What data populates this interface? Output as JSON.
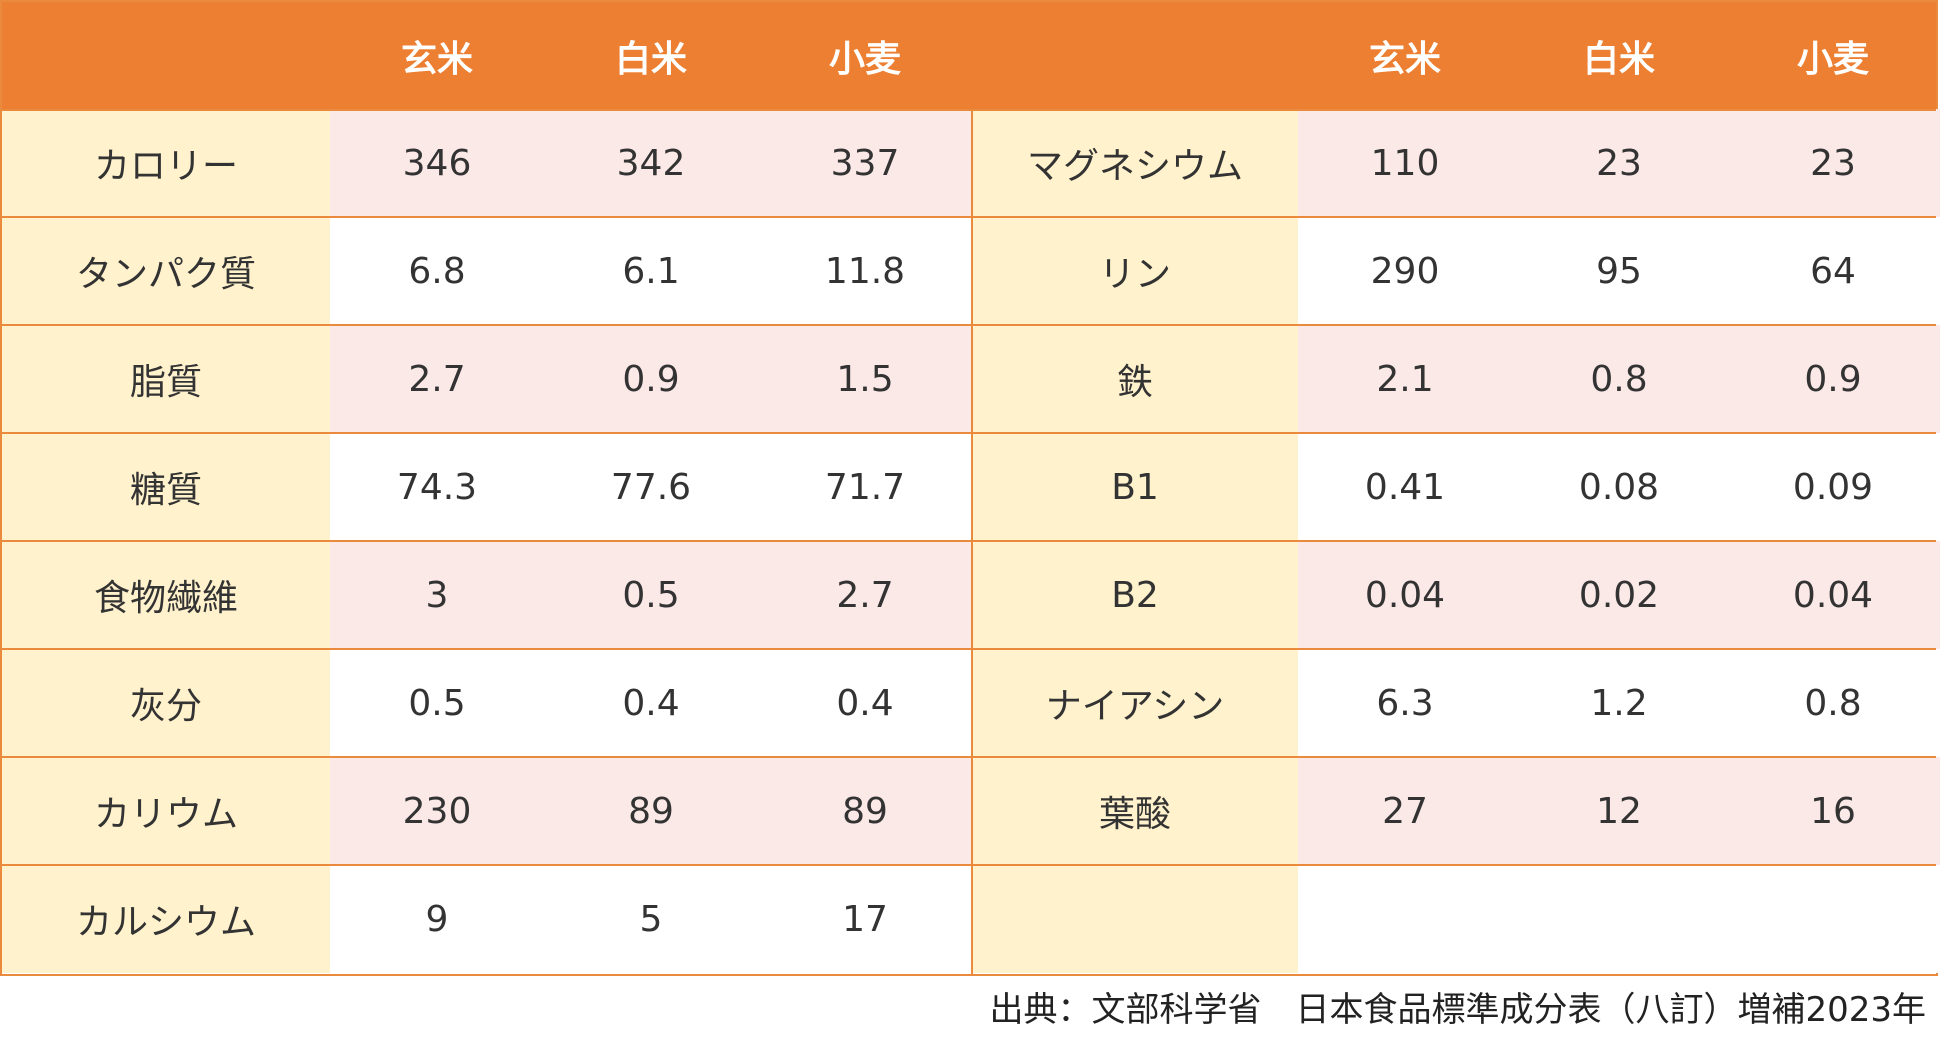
{
  "header": {
    "left": [
      "玄米",
      "白米",
      "小麦"
    ],
    "right": [
      "玄米",
      "白米",
      "小麦"
    ]
  },
  "rows": [
    {
      "left_label": "カロリー",
      "left_values": [
        "346",
        "342",
        "337"
      ],
      "right_label": "マグネシウム",
      "right_values": [
        "110",
        "23",
        "23"
      ]
    },
    {
      "left_label": "タンパク質",
      "left_values": [
        "6.8",
        "6.1",
        "11.8"
      ],
      "right_label": "リン",
      "right_values": [
        "290",
        "95",
        "64"
      ]
    },
    {
      "left_label": "脂質",
      "left_values": [
        "2.7",
        "0.9",
        "1.5"
      ],
      "right_label": "鉄",
      "right_values": [
        "2.1",
        "0.8",
        "0.9"
      ]
    },
    {
      "left_label": "糖質",
      "left_values": [
        "74.3",
        "77.6",
        "71.7"
      ],
      "right_label": "B1",
      "right_values": [
        "0.41",
        "0.08",
        "0.09"
      ]
    },
    {
      "left_label": "食物繊維",
      "left_values": [
        "3",
        "0.5",
        "2.7"
      ],
      "right_label": "B2",
      "right_values": [
        "0.04",
        "0.02",
        "0.04"
      ]
    },
    {
      "left_label": "灰分",
      "left_values": [
        "0.5",
        "0.4",
        "0.4"
      ],
      "right_label": "ナイアシン",
      "right_values": [
        "6.3",
        "1.2",
        "0.8"
      ]
    },
    {
      "left_label": "カリウム",
      "left_values": [
        "230",
        "89",
        "89"
      ],
      "right_label": "葉酸",
      "right_values": [
        "27",
        "12",
        "16"
      ]
    },
    {
      "left_label": "カルシウム",
      "left_values": [
        "9",
        "5",
        "17"
      ],
      "right_label": "",
      "right_values": [
        "",
        "",
        ""
      ]
    }
  ],
  "source": "出典：文部科学省　日本食品標準成分表（八訂）増補2023年",
  "colors": {
    "header_bg": "#ec7f31",
    "header_text": "#ffffff",
    "label_bg": "#fff2cc",
    "stripe_bg": "#fbe9e7",
    "border": "#ea8a3c"
  }
}
